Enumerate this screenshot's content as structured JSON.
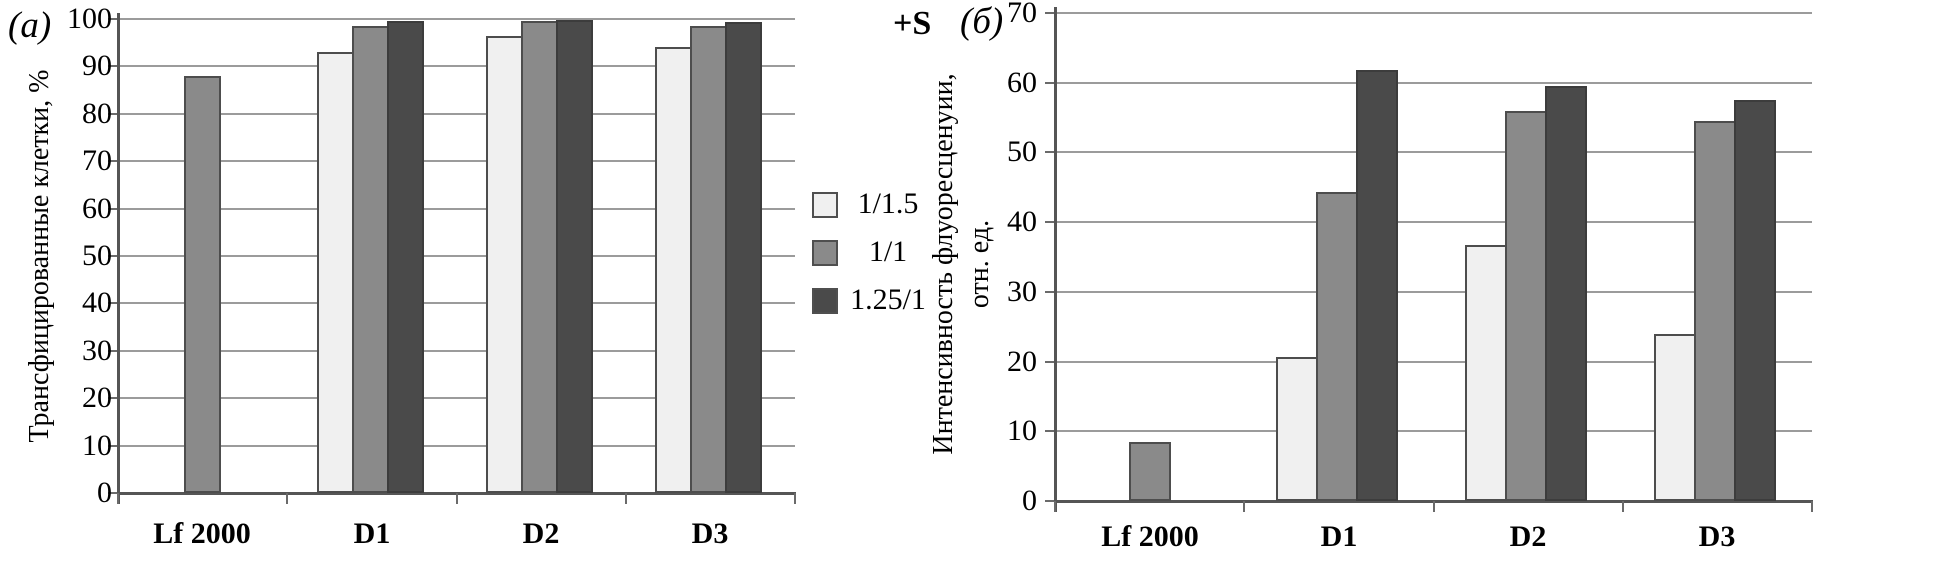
{
  "annotation": "+S",
  "legend": {
    "items": [
      {
        "label": "1/1.5",
        "color": "#f0f0f0"
      },
      {
        "label": "1/1",
        "color": "#8a8a8a"
      },
      {
        "label": "1.25/1",
        "color": "#4a4a4a"
      }
    ]
  },
  "colors": {
    "bar_light": "#f0f0f0",
    "bar_mid": "#8a8a8a",
    "bar_dark": "#4a4a4a",
    "bar_border": "#4d4d4d",
    "gridline": "#9b9b9b",
    "axis": "#555555"
  },
  "chart_data": [
    {
      "type": "bar",
      "panel_label": "(а)",
      "ylabel": "Трансфицированные клетки, %",
      "ylabel_lines": [
        "Трансфицированные клетки, %"
      ],
      "categories": [
        "Lf 2000",
        "D1",
        "D2",
        "D3"
      ],
      "series": [
        {
          "name": "1/1.5",
          "values": [
            null,
            93,
            96.5,
            94
          ]
        },
        {
          "name": "1/1",
          "values": [
            88,
            98.5,
            99.5,
            98.5
          ]
        },
        {
          "name": "1.25/1",
          "values": [
            null,
            99.5,
            99.8,
            99.3
          ]
        }
      ],
      "ylim": [
        0,
        100
      ],
      "yticks": [
        0,
        10,
        20,
        30,
        40,
        50,
        60,
        70,
        80,
        90,
        100
      ],
      "grid": true,
      "legend_position": "right-of-chart"
    },
    {
      "type": "bar",
      "panel_label": "(б)",
      "ylabel": "Интенсивность флуоресценуии, отн. ед.",
      "ylabel_lines": [
        "Интенсивность флуоресценуии,",
        "отн. ед."
      ],
      "categories": [
        "Lf 2000",
        "D1",
        "D2",
        "D3"
      ],
      "series": [
        {
          "name": "1/1.5",
          "values": [
            null,
            20.7,
            36.7,
            24
          ]
        },
        {
          "name": "1/1",
          "values": [
            8.4,
            44.3,
            56,
            54.5
          ]
        },
        {
          "name": "1.25/1",
          "values": [
            null,
            61.8,
            59.5,
            57.5
          ]
        }
      ],
      "ylim": [
        0,
        70
      ],
      "yticks": [
        0,
        10,
        20,
        30,
        40,
        50,
        60,
        70
      ],
      "grid": true
    }
  ]
}
